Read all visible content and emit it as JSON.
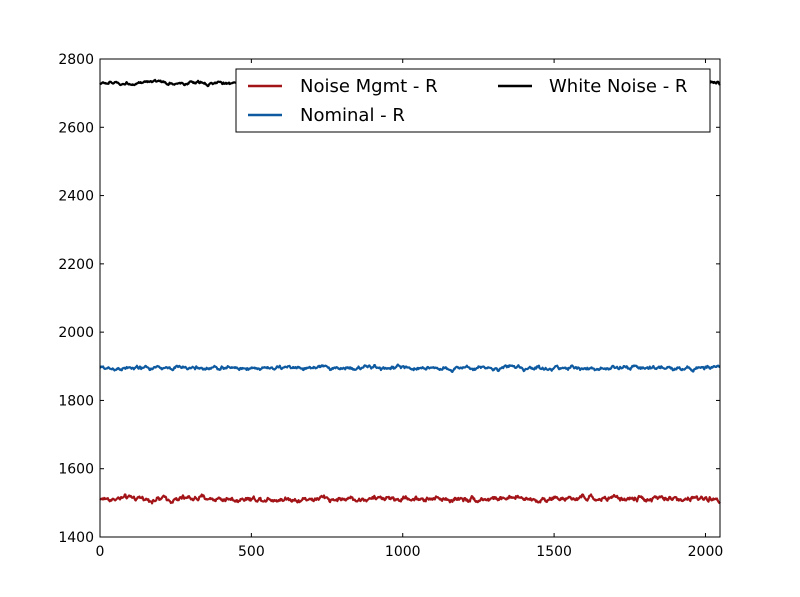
{
  "chart_data": {
    "type": "line",
    "title": "",
    "xlabel": "",
    "ylabel": "",
    "xlim": [
      0,
      2048
    ],
    "ylim": [
      1400,
      2800
    ],
    "xticks": [
      0,
      500,
      1000,
      1500,
      2000
    ],
    "yticks": [
      1400,
      1600,
      1800,
      2000,
      2200,
      2400,
      2600,
      2800
    ],
    "grid": false,
    "legend": {
      "placement": "top-right",
      "columns": 2
    },
    "series": [
      {
        "name": "Noise Mgmt - R",
        "color": "#a31418",
        "mean": 1512,
        "amplitude": 14,
        "x": [
          0,
          2048
        ],
        "y": [
          1512,
          1512
        ]
      },
      {
        "name": "Nominal - R",
        "color": "#0e5aa0",
        "mean": 1895,
        "amplitude": 10,
        "x": [
          0,
          2048
        ],
        "y": [
          1895,
          1895
        ]
      },
      {
        "name": "White Noise - R",
        "color": "#000000",
        "mean": 2729,
        "amplitude": 8,
        "x": [
          0,
          2048
        ],
        "y": [
          2729,
          2729
        ]
      }
    ]
  }
}
